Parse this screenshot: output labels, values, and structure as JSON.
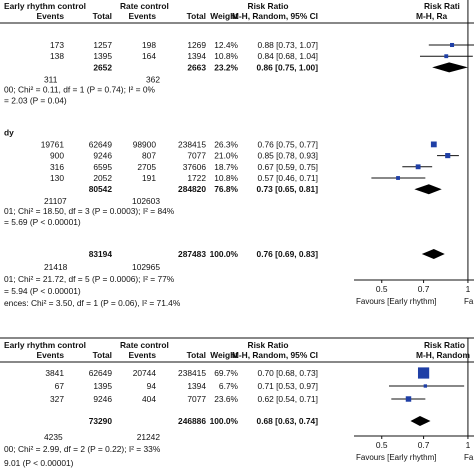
{
  "chart_data": [
    {
      "type": "forest",
      "headers": {
        "group1": "Early rhythm control",
        "group2": "Rate control",
        "effect": "Risk Ratio",
        "effect_right": "Risk Rati",
        "events": "Events",
        "total": "Total",
        "weight": "Weight",
        "method": "M-H, Random, 95% CI",
        "method_right": "M-H, Ra"
      },
      "groups": [
        {
          "title": "",
          "studies": [
            {
              "e1": "173",
              "n1": "1257",
              "e2": "198",
              "n2": "1269",
              "weight": "12.4%",
              "ci_text": "0.88 [0.73, 1.07]",
              "rr": 0.88,
              "lo": 0.73,
              "hi": 1.07
            },
            {
              "e1": "138",
              "n1": "1395",
              "e2": "164",
              "n2": "1394",
              "weight": "10.8%",
              "ci_text": "0.84 [0.68, 1.04]",
              "rr": 0.84,
              "lo": 0.68,
              "hi": 1.04
            }
          ],
          "subtotal": {
            "n1": "2652",
            "n2": "2663",
            "weight": "23.2%",
            "ci_text": "0.86 [0.75, 1.00]",
            "rr": 0.86,
            "lo": 0.75,
            "hi": 1.0
          },
          "total_events": {
            "e1": "311",
            "e2": "362"
          },
          "heterogeneity": "00; Chi² = 0.11, df = 1 (P = 0.74); I² = 0%",
          "overall_test": "= 2.03 (P = 0.04)"
        },
        {
          "title": "dy",
          "studies": [
            {
              "e1": "19761",
              "n1": "62649",
              "e2": "98900",
              "n2": "238415",
              "weight": "26.3%",
              "ci_text": "0.76 [0.75, 0.77]",
              "rr": 0.76,
              "lo": 0.75,
              "hi": 0.77
            },
            {
              "e1": "900",
              "n1": "9246",
              "e2": "807",
              "n2": "7077",
              "weight": "21.0%",
              "ci_text": "0.85 [0.78, 0.93]",
              "rr": 0.85,
              "lo": 0.78,
              "hi": 0.93
            },
            {
              "e1": "316",
              "n1": "6595",
              "e2": "2705",
              "n2": "37606",
              "weight": "18.7%",
              "ci_text": "0.67 [0.59, 0.75]",
              "rr": 0.67,
              "lo": 0.59,
              "hi": 0.75
            },
            {
              "e1": "130",
              "n1": "2052",
              "e2": "191",
              "n2": "1722",
              "weight": "10.8%",
              "ci_text": "0.57 [0.46, 0.71]",
              "rr": 0.57,
              "lo": 0.46,
              "hi": 0.71
            }
          ],
          "subtotal": {
            "n1": "80542",
            "n2": "284820",
            "weight": "76.8%",
            "ci_text": "0.73 [0.65, 0.81]",
            "rr": 0.73,
            "lo": 0.65,
            "hi": 0.81
          },
          "total_events": {
            "e1": "21107",
            "e2": "102603"
          },
          "heterogeneity": "01; Chi² = 18.50, df = 3 (P = 0.0003); I² = 84%",
          "overall_test": "= 5.69 (P < 0.00001)"
        }
      ],
      "total": {
        "n1": "83194",
        "n2": "287483",
        "weight": "100.0%",
        "ci_text": "0.76 [0.69, 0.83]",
        "rr": 0.76,
        "lo": 0.69,
        "hi": 0.83
      },
      "total_events": {
        "e1": "21418",
        "e2": "102965"
      },
      "total_heterogeneity": "01; Chi² = 21.72, df = 5 (P = 0.0006); I² = 77%",
      "total_test": "= 5.94 (P < 0.00001)",
      "subgroup_test": "ences: Chi² = 3.50, df = 1 (P = 0.06), I² = 71.4%",
      "axis": {
        "ticks": [
          "0.5",
          "0.7",
          "1"
        ],
        "tick_values": [
          0.5,
          0.7,
          1
        ],
        "xlim": [
          0.4,
          1.05
        ],
        "favours_left": "Favours [Early rhythm]",
        "favours_right": "Fa"
      }
    },
    {
      "type": "forest",
      "headers": {
        "group1": "Early rhythm control",
        "group2": "Rate control",
        "effect": "Risk Ratio",
        "effect_right": "Risk Ratio",
        "events": "Events",
        "total": "Total",
        "weight": "Weight",
        "method": "M-H, Random, 95% CI",
        "method_right": "M-H, Random"
      },
      "studies": [
        {
          "e1": "3841",
          "n1": "62649",
          "e2": "20744",
          "n2": "238415",
          "weight": "69.7%",
          "ci_text": "0.70 [0.68, 0.73]",
          "rr": 0.7,
          "lo": 0.68,
          "hi": 0.73
        },
        {
          "e1": "67",
          "n1": "1395",
          "e2": "94",
          "n2": "1394",
          "weight": "6.7%",
          "ci_text": "0.71 [0.53, 0.97]",
          "rr": 0.71,
          "lo": 0.53,
          "hi": 0.97
        },
        {
          "e1": "327",
          "n1": "9246",
          "e2": "404",
          "n2": "7077",
          "weight": "23.6%",
          "ci_text": "0.62 [0.54, 0.71]",
          "rr": 0.62,
          "lo": 0.54,
          "hi": 0.71
        }
      ],
      "total": {
        "n1": "73290",
        "n2": "246886",
        "weight": "100.0%",
        "ci_text": "0.68 [0.63, 0.74]",
        "rr": 0.68,
        "lo": 0.63,
        "hi": 0.74
      },
      "total_events": {
        "e1": "4235",
        "e2": "21242"
      },
      "total_heterogeneity": "00; Chi² = 2.99, df = 2 (P = 0.22); I² = 33%",
      "total_test": "9.01 (P < 0.00001)",
      "axis": {
        "ticks": [
          "0.5",
          "0.7",
          "1"
        ],
        "tick_values": [
          0.5,
          0.7,
          1
        ],
        "xlim": [
          0.4,
          1.05
        ],
        "favours_left": "Favours [Early rhythm]",
        "favours_right": "Fa"
      }
    }
  ]
}
